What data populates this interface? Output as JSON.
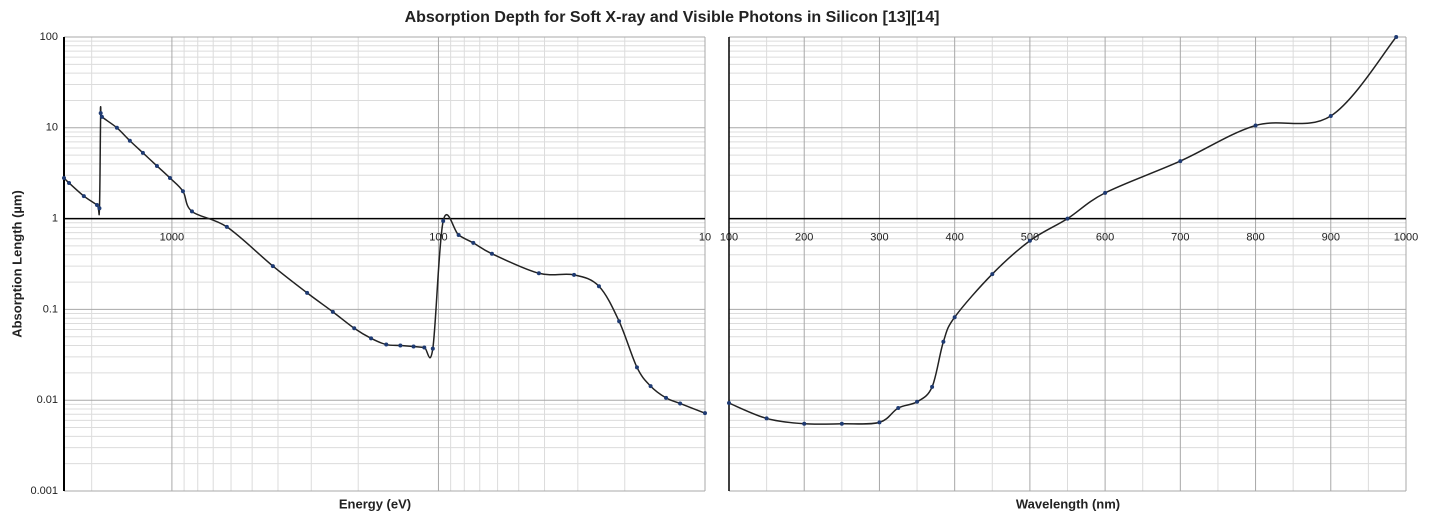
{
  "chart_data": [
    {
      "type": "line",
      "title": "Absorption Depth for Soft X-ray and Visible Photons in Silicon [13][14]",
      "ylabel": "Absorption Length (µm)",
      "xlabel": "Energy (eV)",
      "xlog": true,
      "ylog": true,
      "grid": true,
      "minor_grid": true,
      "line_color": "#222222",
      "marker_color": "#1f3b73",
      "xlim": [
        2540,
        10
      ],
      "xticks": [
        1000,
        100,
        10
      ],
      "ylim": [
        0.001,
        100
      ],
      "yticks": [
        0.001,
        0.01,
        0.1,
        1,
        10,
        100
      ],
      "x": [
        2540,
        2432,
        2140,
        1910,
        1870,
        1850,
        1830,
        1608,
        1438,
        1285,
        1138,
        1017,
        909,
        841,
        622,
        418,
        311,
        249,
        207,
        179,
        157,
        139,
        124,
        113,
        105,
        96,
        84,
        74,
        63,
        42,
        31,
        25,
        21,
        18,
        16,
        14,
        12.4,
        10
      ],
      "values": [
        2.8,
        2.47,
        1.77,
        1.41,
        1.3,
        14.5,
        13.2,
        10,
        7.2,
        5.3,
        3.8,
        2.8,
        2.0,
        1.2,
        0.81,
        0.3,
        0.152,
        0.094,
        0.062,
        0.048,
        0.041,
        0.04,
        0.039,
        0.038,
        0.037,
        0.94,
        0.66,
        0.54,
        0.41,
        0.25,
        0.24,
        0.18,
        0.074,
        0.023,
        0.0143,
        0.0106,
        0.0092,
        0.0072
      ]
    },
    {
      "type": "line",
      "xlabel": "Wavelength (nm)",
      "xlog": false,
      "ylog": true,
      "grid": true,
      "minor_grid": true,
      "line_color": "#222222",
      "marker_color": "#1f3b73",
      "xlim": [
        100,
        1000
      ],
      "xticks": [
        100,
        200,
        300,
        400,
        500,
        600,
        700,
        800,
        900,
        1000
      ],
      "ylim": [
        0.001,
        100
      ],
      "yticks": [
        0.001,
        0.01,
        0.1,
        1,
        10,
        100
      ],
      "x": [
        100,
        150,
        200,
        250,
        300,
        325,
        350,
        370,
        385,
        400,
        450,
        500,
        550,
        600,
        700,
        800,
        900,
        987
      ],
      "values": [
        0.0093,
        0.0063,
        0.0055,
        0.0055,
        0.0057,
        0.0082,
        0.0096,
        0.014,
        0.044,
        0.082,
        0.245,
        0.57,
        1.0,
        1.92,
        4.3,
        10.6,
        13.5,
        100
      ]
    }
  ]
}
